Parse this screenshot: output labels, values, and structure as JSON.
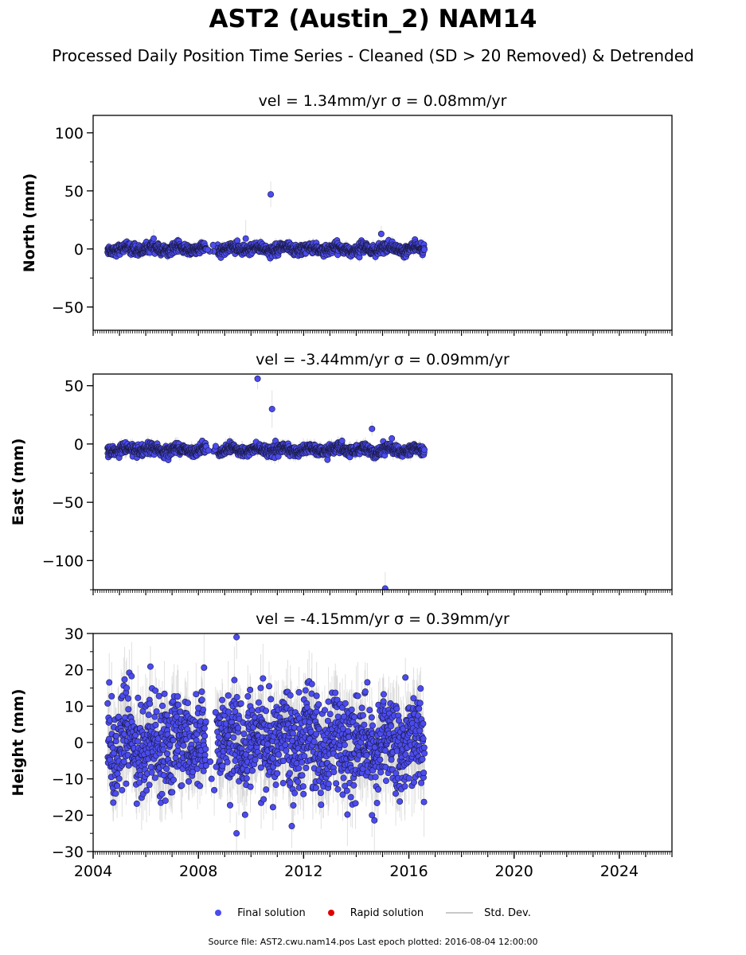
{
  "title": "AST2 (Austin_2) NAM14",
  "subtitle": "Processed Daily Position Time Series - Cleaned (SD > 20 Removed) & Detrended",
  "legend": [
    {
      "label": "Final solution",
      "color": "#4b4bf0",
      "kind": "dot"
    },
    {
      "label": "Rapid solution",
      "color": "#e00000",
      "kind": "dot"
    },
    {
      "label": "Std. Dev.",
      "color": "#c8c8c8",
      "kind": "line"
    }
  ],
  "footer": "Source file: AST2.cwu.nam14.pos  Last epoch plotted: 2016-08-04 12:00:00",
  "chart_data": [
    {
      "type": "scatter",
      "title": "vel = 1.34mm/yr   σ = 0.08mm/yr",
      "ylabel": "North (mm)",
      "xlim": [
        2004,
        2026
      ],
      "ylim": [
        -70,
        115
      ],
      "yticks": [
        -50,
        0,
        50,
        100
      ],
      "xticks": [
        2004,
        2008,
        2012,
        2016,
        2020,
        2024
      ],
      "series_name": "Final solution",
      "data_span": [
        2004.55,
        2016.6
      ],
      "gap": [
        2008.3,
        2008.7
      ],
      "band": {
        "center": 0,
        "spread": 2.2,
        "wave": 1.6,
        "err": 3.5
      },
      "outliers": [
        {
          "x": 2010.75,
          "y": 47,
          "err": 11
        },
        {
          "x": 2009.8,
          "y": 9,
          "err": 16
        },
        {
          "x": 2014.95,
          "y": 13,
          "err": 7
        },
        {
          "x": 2006.3,
          "y": 9,
          "err": 8
        }
      ]
    },
    {
      "type": "scatter",
      "title": "vel = -3.44mm/yr   σ = 0.09mm/yr",
      "ylabel": "East (mm)",
      "xlim": [
        2004,
        2026
      ],
      "ylim": [
        -125,
        60
      ],
      "yticks": [
        -100,
        -50,
        0,
        50
      ],
      "xticks": [
        2004,
        2008,
        2012,
        2016,
        2020,
        2024
      ],
      "series_name": "Final solution",
      "data_span": [
        2004.55,
        2016.6
      ],
      "gap": [
        2008.3,
        2008.7
      ],
      "band": {
        "center": -5,
        "spread": 2.2,
        "wave": 1.8,
        "err": 4
      },
      "outliers": [
        {
          "x": 2010.25,
          "y": 56,
          "err": 9
        },
        {
          "x": 2010.8,
          "y": 30,
          "err": 16
        },
        {
          "x": 2014.6,
          "y": 13,
          "err": 6
        },
        {
          "x": 2015.1,
          "y": -124,
          "err": 14
        }
      ]
    },
    {
      "type": "scatter",
      "title": "vel = -4.15mm/yr   σ = 0.39mm/yr",
      "ylabel": "Height (mm)",
      "xlim": [
        2004,
        2026
      ],
      "ylim": [
        -30,
        30
      ],
      "yticks": [
        -30,
        -20,
        -10,
        0,
        10,
        20,
        30
      ],
      "xticks": [
        2004,
        2008,
        2012,
        2016,
        2020,
        2024
      ],
      "xticklabels": [
        "2004",
        "2008",
        "2012",
        "2016",
        "2020",
        "2024"
      ],
      "series_name": "Final solution",
      "data_span": [
        2004.55,
        2016.6
      ],
      "gap": [
        2008.3,
        2008.7
      ],
      "band": {
        "center": 0,
        "spread": 6.5,
        "wave": 2.5,
        "err": 7
      },
      "outliers": [
        {
          "x": 2009.45,
          "y": 29,
          "err": 6
        },
        {
          "x": 2009.45,
          "y": -25,
          "err": 6
        },
        {
          "x": 2011.55,
          "y": -23,
          "err": 6
        },
        {
          "x": 2014.6,
          "y": -20,
          "err": 6
        },
        {
          "x": 2008.0,
          "y": 9.5,
          "err": 5
        },
        {
          "x": 2008.5,
          "y": -10,
          "err": 5
        }
      ]
    }
  ]
}
